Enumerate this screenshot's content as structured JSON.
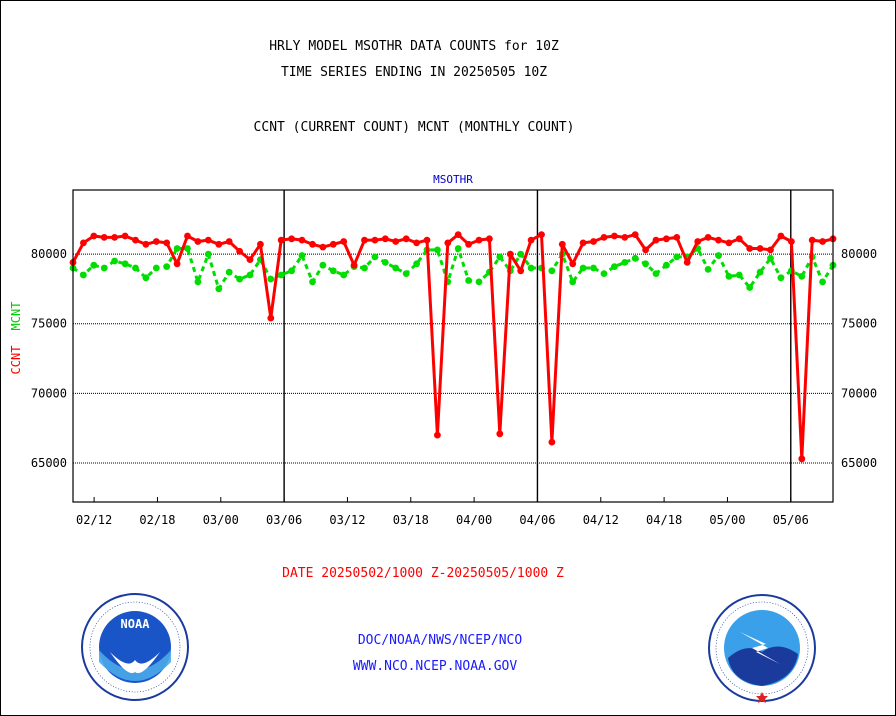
{
  "footer": {
    "org_path": "DOC/NOAA/NWS/NCEP/NCO",
    "website": "WWW.NCO.NCEP.NOAA.GOV"
  },
  "logos": [
    "noaa-logo-icon",
    "nws-logo-icon"
  ],
  "chart_data": {
    "type": "line",
    "title": "HRLY MODEL MSOTHR DATA COUNTS for 10Z",
    "subtitle": "TIME SERIES ENDING IN 20250505 10Z",
    "description": "CCNT (CURRENT COUNT) MCNT (MONTHLY COUNT)",
    "panel_title": "MSOTHR",
    "ylabel_series_1": "CCNT",
    "ylabel_series_2": "MCNT",
    "date_range": "DATE 20250502/1000 Z-20250505/1000 Z",
    "x_tick_labels": [
      "02/12",
      "02/18",
      "03/00",
      "03/06",
      "03/12",
      "03/18",
      "04/00",
      "04/06",
      "04/12",
      "04/18",
      "05/00",
      "05/06"
    ],
    "x_ticks_hours": [
      2,
      8,
      14,
      20,
      26,
      32,
      38,
      44,
      50,
      56,
      62,
      68
    ],
    "day_boundaries_hours": [
      20,
      44,
      68
    ],
    "xlim_hours": [
      0,
      72
    ],
    "y_tick_labels": [
      "65000",
      "70000",
      "75000",
      "80000"
    ],
    "y_ticks": [
      65000,
      70000,
      75000,
      80000
    ],
    "ylim": [
      62200,
      84600
    ],
    "grid": true,
    "colors": {
      "ccnt": "#ff0000",
      "mcnt": "#00dd00",
      "axis": "#000000",
      "panel_title": "#0000cc"
    },
    "series": [
      {
        "name": "CCNT",
        "color": "#ff0000",
        "line_style": "solid",
        "values": [
          79400,
          80800,
          81300,
          81200,
          81200,
          81300,
          81000,
          80700,
          80900,
          80800,
          79300,
          81300,
          80900,
          81000,
          80700,
          80900,
          80200,
          79600,
          80700,
          75400,
          81000,
          81100,
          81000,
          80700,
          80500,
          80700,
          80900,
          79200,
          81000,
          81000,
          81100,
          80900,
          81100,
          80800,
          81000,
          67000,
          80800,
          81400,
          80700,
          81000,
          81100,
          67100,
          80000,
          78800,
          81000,
          81400,
          66500,
          80700,
          79300,
          80800,
          80900,
          81200,
          81300,
          81200,
          81400,
          80300,
          81000,
          81100,
          81200,
          79400,
          80900,
          81200,
          81000,
          80800,
          81100,
          80400,
          80400,
          80300,
          81300,
          80900,
          65300,
          81000,
          80900,
          81100
        ]
      },
      {
        "name": "MCNT",
        "color": "#00dd00",
        "line_style": "dashed",
        "values": [
          79000,
          78500,
          79200,
          79000,
          79500,
          79300,
          79000,
          78300,
          79000,
          79100,
          80400,
          80400,
          78000,
          80000,
          77500,
          78700,
          78200,
          78500,
          79600,
          78200,
          78500,
          78800,
          79900,
          78000,
          79200,
          78800,
          78500,
          79100,
          79000,
          79800,
          79400,
          79000,
          78600,
          79300,
          80300,
          80300,
          78000,
          80400,
          78100,
          78000,
          78700,
          79800,
          78800,
          80000,
          79000,
          79000,
          78800,
          80000,
          78000,
          79000,
          79000,
          78600,
          79100,
          79400,
          79700,
          79300,
          78600,
          79200,
          79800,
          79800,
          80400,
          78900,
          79900,
          78400,
          78500,
          77600,
          78700,
          79700,
          78300,
          78800,
          78400,
          79800,
          78000,
          79200
        ]
      }
    ]
  }
}
